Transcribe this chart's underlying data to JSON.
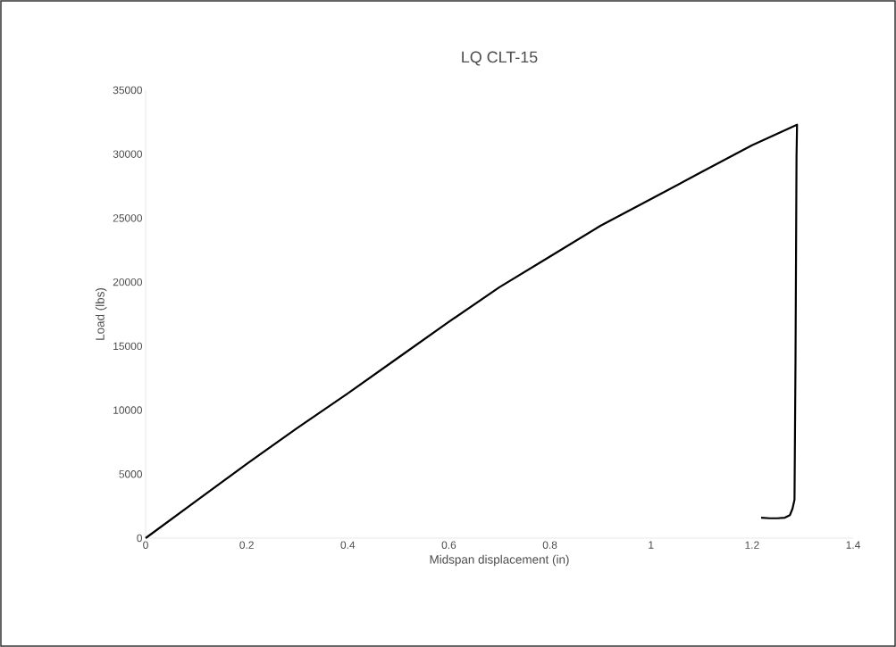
{
  "chart_data": {
    "type": "line",
    "title": "LQ CLT-15",
    "xlabel": "Midspan displacement (in)",
    "ylabel": "Load (lbs)",
    "xlim": [
      0,
      1.4
    ],
    "xticks": [
      0,
      0.2,
      0.4,
      0.6,
      0.8,
      1,
      1.2,
      1.4
    ],
    "ylim": [
      0,
      35000
    ],
    "yticks": [
      0,
      5000,
      10000,
      15000,
      20000,
      25000,
      30000,
      35000
    ],
    "grid": false,
    "marker": "none",
    "line_style": "solid",
    "series": [
      {
        "color": "#000000",
        "x": [
          0,
          0.1,
          0.2,
          0.3,
          0.4,
          0.5,
          0.6,
          0.7,
          0.8,
          0.9,
          1.0,
          1.1,
          1.2,
          1.289,
          1.288,
          1.286,
          1.284,
          1.28,
          1.275,
          1.265,
          1.25,
          1.235,
          1.218
        ],
        "values": [
          0,
          2900,
          5800,
          8600,
          11300,
          14100,
          16900,
          19600,
          22000,
          24400,
          26500,
          28600,
          30700,
          32300,
          29800,
          14000,
          3000,
          2300,
          1800,
          1600,
          1550,
          1550,
          1600
        ]
      }
    ]
  }
}
